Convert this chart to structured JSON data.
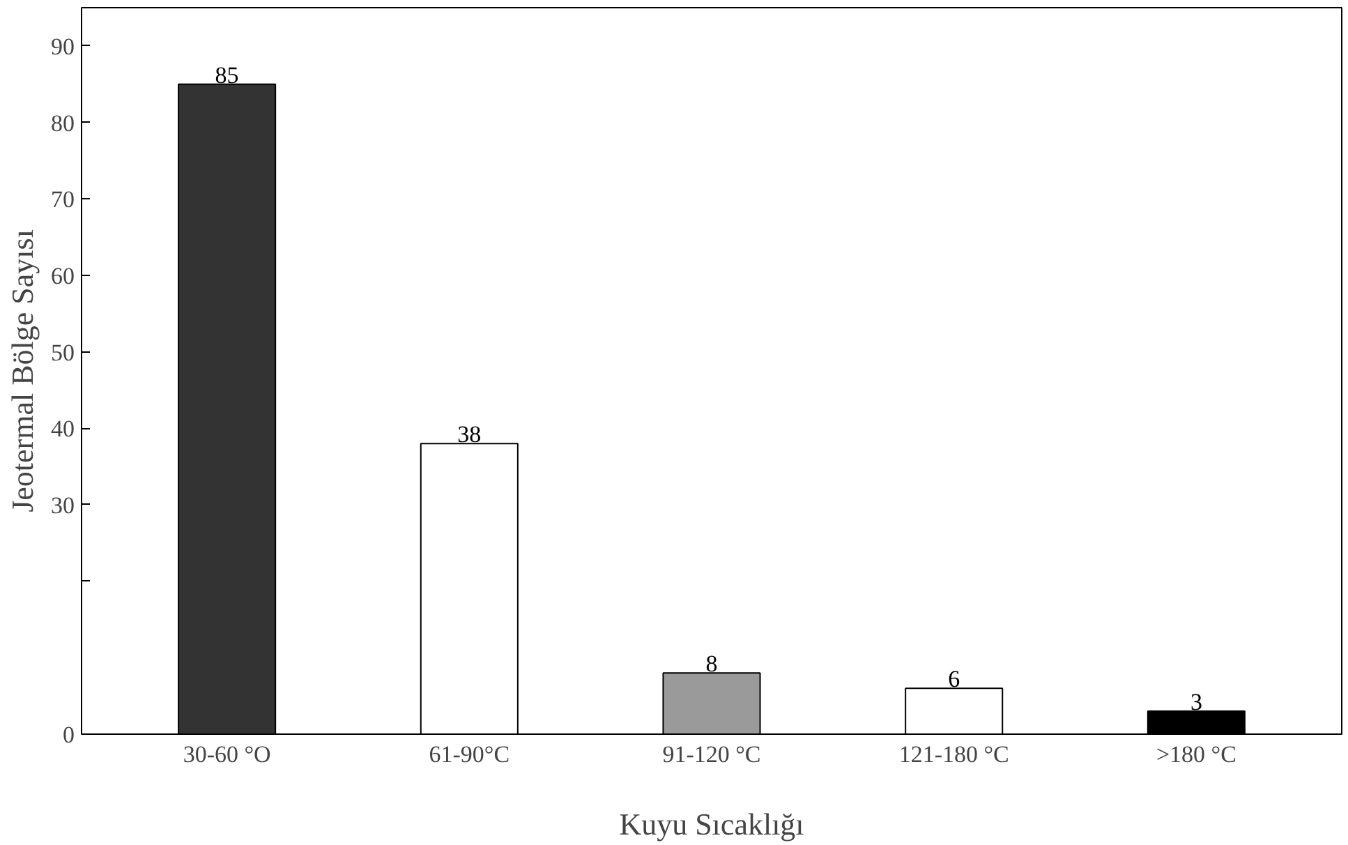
{
  "chart_data": {
    "type": "bar",
    "xlabel": "Kuyu Sıcaklığı",
    "ylabel": "Jeotermal Bölge Sayısı",
    "categories": [
      "30-60 °O",
      "61-90°C",
      "91-120 °C",
      "121-180 °C",
      ">180 °C"
    ],
    "values": [
      85,
      38,
      8,
      6,
      3
    ],
    "colors": [
      "#333333",
      "#ffffff",
      "#9a9a9a",
      "#ffffff",
      "#000000"
    ],
    "ylim": [
      0,
      95
    ],
    "yticks": [
      0,
      {
        "value": 20,
        "label": null
      },
      30,
      40,
      50,
      60,
      70,
      80,
      90
    ],
    "data_labels": true,
    "grid": false
  }
}
